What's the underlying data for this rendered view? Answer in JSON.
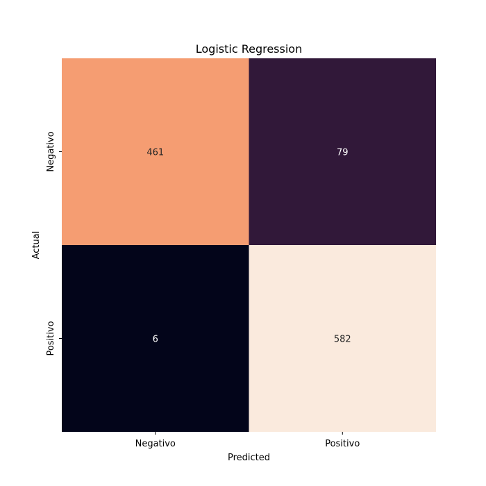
{
  "chart_data": {
    "type": "heatmap",
    "title": "Logistic Regression",
    "xlabel": "Predicted",
    "ylabel": "Actual",
    "x_categories": [
      "Negativo",
      "Positivo"
    ],
    "y_categories": [
      "Negativo",
      "Positivo"
    ],
    "values": [
      [
        461,
        79
      ],
      [
        6,
        582
      ]
    ],
    "cell_labels": [
      [
        "461",
        "79"
      ],
      [
        "6",
        "582"
      ]
    ],
    "colormap": "rocket",
    "cell_colors": [
      [
        "#f59d72",
        "#311839"
      ],
      [
        "#03051a",
        "#faeadd"
      ]
    ],
    "label_colors": [
      [
        "#262626",
        "#ffffff"
      ],
      [
        "#ffffff",
        "#262626"
      ]
    ],
    "colorbar": false
  }
}
